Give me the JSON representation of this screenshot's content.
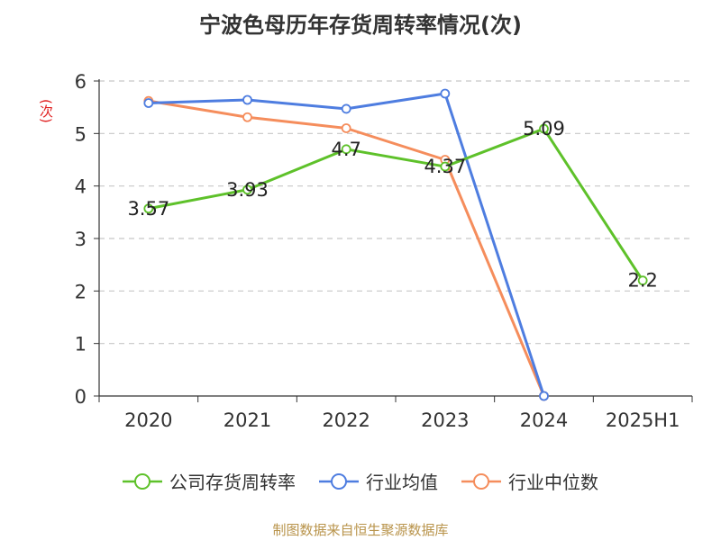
{
  "chart_data": {
    "type": "line",
    "title": "宁波色母历年存货周转率情况(次)",
    "ylabel": "(次)",
    "categories": [
      "2020",
      "2021",
      "2022",
      "2023",
      "2024",
      "2025H1"
    ],
    "ylim": [
      0,
      6
    ],
    "yticks": [
      0,
      1,
      2,
      3,
      4,
      5,
      6
    ],
    "grid": true,
    "legend_position": "bottom",
    "series": [
      {
        "name": "公司存货周转率",
        "color": "#5ec12a",
        "values": [
          3.57,
          3.93,
          4.7,
          4.37,
          5.09,
          2.2
        ],
        "labels": [
          "3.57",
          "3.93",
          "4.7",
          "4.37",
          "5.09",
          "2.2"
        ]
      },
      {
        "name": "行业均值",
        "color": "#4e7de0",
        "values": [
          5.58,
          5.64,
          5.47,
          5.76,
          0.0,
          null
        ],
        "labels": null
      },
      {
        "name": "行业中位数",
        "color": "#f58d5c",
        "values": [
          5.62,
          5.31,
          5.1,
          4.5,
          0.0,
          null
        ],
        "labels": null
      }
    ]
  },
  "source": "制图数据来自恒生聚源数据库"
}
